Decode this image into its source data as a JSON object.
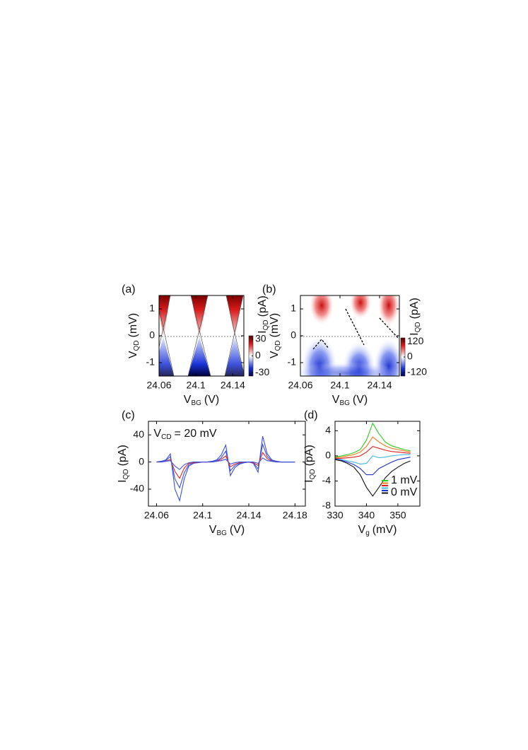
{
  "chart_data": [
    {
      "type": "heatmap",
      "panel_label": "(a)",
      "x_label": {
        "symbol": "V",
        "subscript": "BG",
        "unit": "(V)"
      },
      "y_label": {
        "symbol": "V",
        "subscript": "QD",
        "unit": "(mV)"
      },
      "colorbar_label": {
        "symbol": "I",
        "subscript": "QD",
        "unit": "(pA)"
      },
      "xlim": [
        24.06,
        24.152
      ],
      "xticks": [
        24.06,
        24.1,
        24.14
      ],
      "ylim": [
        -1.5,
        1.5
      ],
      "yticks": [
        -1,
        0,
        1
      ],
      "clim": [
        -36,
        36
      ],
      "cticks": [
        -30,
        0,
        30
      ],
      "colors": [
        "#1a33d6",
        "#ffffff",
        "#d81b1b"
      ]
    },
    {
      "type": "heatmap",
      "panel_label": "(b)",
      "x_label": {
        "symbol": "V",
        "subscript": "BG",
        "unit": "(V)"
      },
      "y_label": {
        "symbol": "V",
        "subscript": "QD",
        "unit": "(mV)"
      },
      "colorbar_label": {
        "symbol": "I",
        "subscript": "QD",
        "unit": "(pA)"
      },
      "xlim": [
        24.06,
        24.16
      ],
      "xticks": [
        24.06,
        24.1,
        24.14
      ],
      "ylim": [
        -1.5,
        1.5
      ],
      "yticks": [
        -1,
        0,
        1
      ],
      "clim": [
        -150,
        150
      ],
      "cticks": [
        -120,
        0,
        120
      ],
      "colors": [
        "#1a33d6",
        "#ffffff",
        "#d81b1b"
      ]
    },
    {
      "type": "line",
      "panel_label": "(c)",
      "annotation": {
        "symbol": "V",
        "subscript": "CD",
        "unit": "= 20 mV"
      },
      "x_label": {
        "symbol": "V",
        "subscript": "BG",
        "unit": "(V)"
      },
      "y_label": {
        "symbol": "I",
        "subscript": "QD",
        "unit": "(pA)"
      },
      "xlim": [
        24.053,
        24.189
      ],
      "xticks": [
        24.06,
        24.1,
        24.14,
        24.18
      ],
      "ylim": [
        -65,
        60
      ],
      "yticks": [
        -40,
        0,
        40
      ],
      "x": [
        24.06,
        24.064,
        24.068,
        24.072,
        24.076,
        24.08,
        24.084,
        24.088,
        24.092,
        24.096,
        24.1,
        24.104,
        24.108,
        24.112,
        24.116,
        24.12,
        24.124,
        24.128,
        24.132,
        24.136,
        24.14,
        24.144,
        24.148,
        24.152,
        24.156,
        24.16,
        24.164,
        24.168,
        24.172,
        24.176,
        24.18
      ],
      "series": [
        {
          "color": "#3b4fe0",
          "values": [
            0,
            1,
            3,
            12,
            -40,
            -57,
            -25,
            -6,
            -2,
            -1,
            0,
            0,
            1,
            3,
            10,
            25,
            -20,
            -8,
            -3,
            -1,
            0,
            -2,
            -15,
            38,
            12,
            3,
            1,
            0,
            0,
            0,
            0
          ]
        },
        {
          "color": "#3b4fe0",
          "values": [
            0,
            1,
            2,
            8,
            -25,
            -38,
            -16,
            -4,
            -1,
            0,
            0,
            0,
            1,
            2,
            6,
            16,
            -13,
            -5,
            -2,
            -1,
            0,
            -1,
            -10,
            26,
            8,
            2,
            1,
            0,
            0,
            0,
            0
          ]
        },
        {
          "color": "#e02828",
          "values": [
            0,
            0,
            1,
            4,
            -14,
            -24,
            -9,
            -2,
            -1,
            0,
            0,
            0,
            0,
            1,
            4,
            9,
            -7,
            -3,
            -1,
            0,
            0,
            -1,
            -5,
            14,
            5,
            1,
            0,
            0,
            0,
            0,
            0
          ]
        },
        {
          "color": "#3b4fe0",
          "values": [
            0,
            0,
            1,
            2,
            -6,
            -11,
            -4,
            -1,
            0,
            0,
            0,
            0,
            0,
            1,
            2,
            4,
            -3,
            -1,
            0,
            0,
            0,
            0,
            -2,
            6,
            2,
            1,
            0,
            0,
            0,
            0,
            0
          ]
        }
      ]
    },
    {
      "type": "line",
      "panel_label": "(d)",
      "x_label": {
        "symbol": "V",
        "subscript": "g",
        "unit": "(mV)"
      },
      "y_label": {
        "symbol": "I",
        "subscript": "QD",
        "unit": "(pA)"
      },
      "xlim": [
        330,
        357
      ],
      "xticks": [
        330,
        340,
        350
      ],
      "ylim": [
        -8,
        5.5
      ],
      "yticks": [
        -8,
        -4,
        0,
        4
      ],
      "x": [
        330,
        332,
        334,
        336,
        338,
        340,
        342,
        344,
        346,
        348,
        350,
        352,
        354
      ],
      "series": [
        {
          "name": "1 mV",
          "color": "#2ecc1e",
          "values": [
            -0.2,
            0,
            0.2,
            0.5,
            1,
            2.5,
            5.2,
            3.5,
            2.2,
            1.6,
            1.3,
            1,
            0.8
          ]
        },
        {
          "color": "#f07a1a",
          "values": [
            -0.3,
            -0.2,
            0,
            0.2,
            0.6,
            1.5,
            3,
            2.2,
            1.6,
            1.2,
            1,
            0.8,
            0.6
          ]
        },
        {
          "color": "#e02020",
          "values": [
            -0.4,
            -0.4,
            -0.3,
            -0.2,
            0,
            0.6,
            1.5,
            1.2,
            0.9,
            0.7,
            0.6,
            0.5,
            0.4
          ]
        },
        {
          "color": "#3fb8e0",
          "values": [
            -0.5,
            -0.6,
            -0.8,
            -1,
            -1.3,
            -1.2,
            0,
            -0.3,
            -0.2,
            0,
            0.1,
            0.2,
            0.2
          ]
        },
        {
          "color": "#2033d0",
          "values": [
            -0.5,
            -0.7,
            -1,
            -1.4,
            -2,
            -3,
            -3,
            -2,
            -1.5,
            -1,
            -0.6,
            -0.4,
            -0.2
          ]
        },
        {
          "name": "0 mV",
          "color": "#111111",
          "values": [
            -0.6,
            -0.8,
            -1.2,
            -1.8,
            -3,
            -5,
            -6.4,
            -5,
            -3.5,
            -2.5,
            -1.8,
            -1.2,
            -0.8
          ]
        }
      ]
    }
  ]
}
